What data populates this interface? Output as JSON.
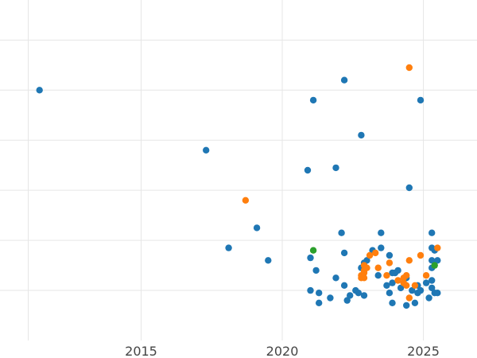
{
  "chart_data": {
    "type": "scatter",
    "title": "",
    "xlabel": "",
    "ylabel": "",
    "xlim": [
      2010.0,
      2026.9
    ],
    "ylim": [
      -1.0,
      5.8
    ],
    "x_ticks": [
      2015,
      2020,
      2025
    ],
    "x_tick_labels": [
      "2015",
      "2020",
      "2025"
    ],
    "y_gridlines": [
      0,
      1,
      2,
      3,
      4,
      5
    ],
    "grid": true,
    "legend": "none",
    "series": [
      {
        "color": "#1f77b4",
        "points": [
          [
            2011.4,
            4.0
          ],
          [
            2017.3,
            2.8
          ],
          [
            2018.1,
            0.85
          ],
          [
            2019.1,
            1.25
          ],
          [
            2019.5,
            0.6
          ],
          [
            2020.9,
            2.4
          ],
          [
            2021.1,
            3.8
          ],
          [
            2021.9,
            2.45
          ],
          [
            2022.2,
            4.2
          ],
          [
            2022.8,
            3.1
          ],
          [
            2024.5,
            2.05
          ],
          [
            2024.9,
            3.8
          ],
          [
            2022.1,
            1.15
          ],
          [
            2023.5,
            1.15
          ],
          [
            2025.3,
            1.15
          ],
          [
            2021.0,
            0.65
          ],
          [
            2021.2,
            0.4
          ],
          [
            2021.0,
            0.0
          ],
          [
            2021.3,
            -0.05
          ],
          [
            2021.3,
            -0.25
          ],
          [
            2021.7,
            -0.15
          ],
          [
            2021.9,
            0.25
          ],
          [
            2022.2,
            0.1
          ],
          [
            2022.2,
            0.75
          ],
          [
            2022.3,
            -0.2
          ],
          [
            2022.4,
            -0.1
          ],
          [
            2022.6,
            0.0
          ],
          [
            2022.7,
            -0.05
          ],
          [
            2022.8,
            0.45
          ],
          [
            2022.9,
            -0.1
          ],
          [
            2023.0,
            0.6
          ],
          [
            2023.2,
            0.8
          ],
          [
            2023.4,
            0.3
          ],
          [
            2023.5,
            0.85
          ],
          [
            2023.7,
            0.1
          ],
          [
            2023.8,
            0.7
          ],
          [
            2023.9,
            0.15
          ],
          [
            2023.9,
            0.35
          ],
          [
            2023.8,
            -0.05
          ],
          [
            2023.9,
            -0.25
          ],
          [
            2024.1,
            0.4
          ],
          [
            2024.2,
            0.05
          ],
          [
            2024.4,
            0.25
          ],
          [
            2024.4,
            -0.3
          ],
          [
            2024.7,
            -0.25
          ],
          [
            2024.8,
            0.1
          ],
          [
            2024.8,
            -0.05
          ],
          [
            2024.9,
            0.0
          ],
          [
            2025.1,
            0.15
          ],
          [
            2025.2,
            -0.15
          ],
          [
            2025.3,
            0.2
          ],
          [
            2025.3,
            0.05
          ],
          [
            2025.4,
            -0.05
          ],
          [
            2025.5,
            -0.05
          ],
          [
            2025.3,
            0.85
          ],
          [
            2025.4,
            0.8
          ],
          [
            2025.3,
            0.6
          ],
          [
            2025.5,
            0.6
          ],
          [
            2025.3,
            0.45
          ],
          [
            2022.9,
            0.55
          ],
          [
            2024.6,
            0.0
          ],
          [
            2024.0,
            0.35
          ]
        ]
      },
      {
        "color": "#ff7f0e",
        "points": [
          [
            2018.7,
            1.8
          ],
          [
            2024.5,
            4.45
          ],
          [
            2022.8,
            0.3
          ],
          [
            2022.9,
            0.35
          ],
          [
            2022.9,
            0.25
          ],
          [
            2022.9,
            0.4
          ],
          [
            2022.9,
            0.5
          ],
          [
            2023.0,
            0.45
          ],
          [
            2022.8,
            0.25
          ],
          [
            2023.1,
            0.7
          ],
          [
            2023.3,
            0.75
          ],
          [
            2023.4,
            0.45
          ],
          [
            2023.7,
            0.3
          ],
          [
            2023.8,
            0.55
          ],
          [
            2024.1,
            0.2
          ],
          [
            2024.3,
            0.25
          ],
          [
            2024.4,
            0.3
          ],
          [
            2024.4,
            0.1
          ],
          [
            2024.5,
            -0.15
          ],
          [
            2024.5,
            0.6
          ],
          [
            2024.7,
            0.1
          ],
          [
            2024.9,
            0.7
          ],
          [
            2025.1,
            0.3
          ],
          [
            2025.5,
            0.85
          ],
          [
            2024.3,
            0.15
          ]
        ]
      },
      {
        "color": "#2ca02c",
        "points": [
          [
            2021.1,
            0.8
          ],
          [
            2025.4,
            0.5
          ]
        ]
      }
    ]
  }
}
